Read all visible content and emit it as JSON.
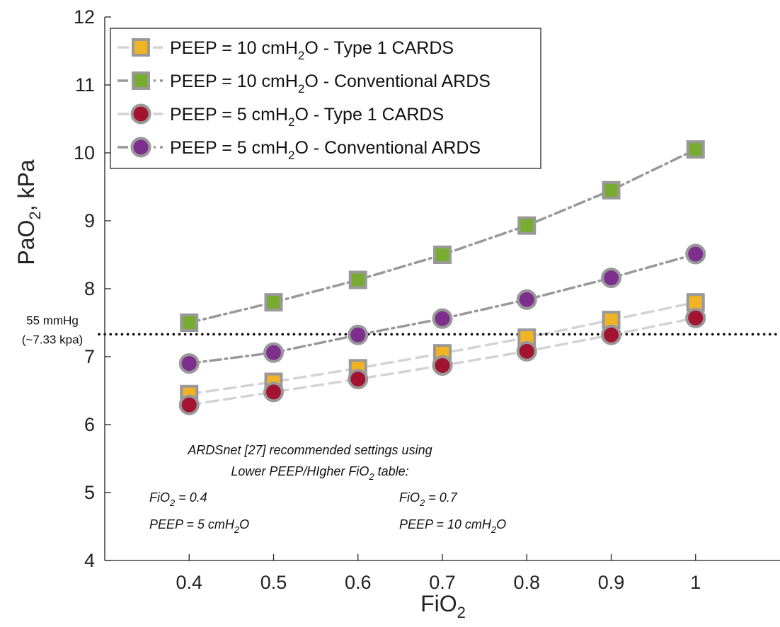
{
  "chart_data": {
    "type": "line",
    "xlabel": "FiO",
    "xlabel_sub": "2",
    "ylabel": "PaO",
    "ylabel_sub": "2",
    "ylabel_suffix": ", kPa",
    "xlim": [
      0.3,
      1.1
    ],
    "ylim": [
      4,
      12
    ],
    "x_ticks": [
      0.4,
      0.5,
      0.6,
      0.7,
      0.8,
      0.9,
      1
    ],
    "x_tick_labels": [
      "0.4",
      "0.5",
      "0.6",
      "0.7",
      "0.8",
      "0.9",
      "1"
    ],
    "y_ticks": [
      4,
      5,
      6,
      7,
      8,
      9,
      10,
      11,
      12
    ],
    "y_tick_labels": [
      "4",
      "5",
      "6",
      "7",
      "8",
      "9",
      "10",
      "11",
      "12"
    ],
    "grid": false,
    "legend_position": "top-left",
    "x": [
      0.4,
      0.5,
      0.6,
      0.7,
      0.8,
      0.9,
      1.0
    ],
    "series": [
      {
        "name": "PEEP = 10 cmH2O - Type 1 CARDS",
        "legend": [
          "PEEP = 10 cmH",
          "2",
          "O - Type 1 CARDS"
        ],
        "marker": "square",
        "line": "dashed",
        "line_color": "#d3d3d3",
        "marker_color": "#f0b323",
        "edge_color": "#999999",
        "values": [
          6.45,
          6.63,
          6.83,
          7.05,
          7.28,
          7.54,
          7.8
        ]
      },
      {
        "name": "PEEP = 10 cmH2O - Conventional ARDS",
        "legend": [
          "PEEP = 10 cmH",
          "2",
          "O - Conventional ARDS"
        ],
        "marker": "square",
        "line": "dashdot",
        "line_color": "#999999",
        "marker_color": "#77ac30",
        "edge_color": "#999999",
        "values": [
          7.5,
          7.8,
          8.13,
          8.5,
          8.93,
          9.45,
          10.05
        ]
      },
      {
        "name": "PEEP = 5 cmH2O - Type 1 CARDS",
        "legend": [
          "PEEP = 5 cmH",
          "2",
          "O - Type 1 CARDS"
        ],
        "marker": "circle",
        "line": "dashed",
        "line_color": "#d3d3d3",
        "marker_color": "#a2142f",
        "edge_color": "#999999",
        "values": [
          6.29,
          6.48,
          6.67,
          6.87,
          7.08,
          7.32,
          7.57
        ]
      },
      {
        "name": "PEEP = 5 cmH2O - Conventional ARDS",
        "legend": [
          "PEEP = 5 cmH",
          "2",
          "O - Conventional ARDS"
        ],
        "marker": "circle",
        "line": "dashdot",
        "line_color": "#999999",
        "marker_color": "#7e2f8e",
        "edge_color": "#999999",
        "values": [
          6.9,
          7.06,
          7.32,
          7.56,
          7.84,
          8.16,
          8.51
        ]
      }
    ],
    "threshold": {
      "y": 7.33,
      "label_line1": "55 mmHg",
      "label_line2": "(~7.33 kpa)",
      "style": "dotted",
      "color": "#000000"
    },
    "annotations": {
      "heading_line1": "ARDSnet [27] recommended settings using",
      "heading_line2": [
        "Lower PEEP/HIgher FiO",
        "2",
        " table:"
      ],
      "left_fio2": [
        "FiO",
        "2",
        " = 0.4"
      ],
      "left_peep": [
        "PEEP = 5 cmH",
        "2",
        "O"
      ],
      "right_fio2": [
        "FiO",
        "2",
        " = 0.7"
      ],
      "right_peep": [
        "PEEP = 10 cmH",
        "2",
        "O"
      ]
    }
  }
}
